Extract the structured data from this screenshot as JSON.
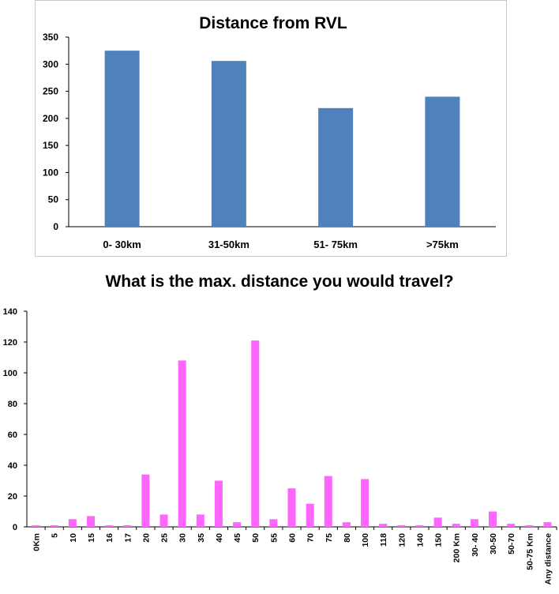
{
  "chart_data": [
    {
      "type": "bar",
      "title": "Distance from RVL",
      "categories": [
        "0- 30km",
        "31-50km",
        "51- 75km",
        ">75km"
      ],
      "values": [
        325,
        306,
        219,
        240
      ],
      "ylim": [
        0,
        350
      ],
      "yticks": [
        0,
        50,
        100,
        150,
        200,
        250,
        300,
        350
      ],
      "grid": false,
      "color": "#4f81bd"
    },
    {
      "type": "bar",
      "title": "What is the max. distance you would travel?",
      "categories": [
        "0Km",
        "5",
        "10",
        "15",
        "16",
        "17",
        "20",
        "25",
        "30",
        "35",
        "40",
        "45",
        "50",
        "55",
        "60",
        "70",
        "75",
        "80",
        "100",
        "118",
        "120",
        "140",
        "150",
        "200 Km",
        "30- 40",
        "30-50",
        "50-70",
        "50-75 Km",
        "Any distance"
      ],
      "values": [
        1,
        1,
        5,
        7,
        1,
        1,
        34,
        8,
        108,
        8,
        30,
        3,
        121,
        5,
        25,
        15,
        33,
        3,
        31,
        2,
        1,
        1,
        6,
        2,
        5,
        10,
        2,
        1,
        3
      ],
      "ylim": [
        0,
        140
      ],
      "yticks": [
        0,
        20,
        40,
        60,
        80,
        100,
        120,
        140
      ],
      "grid": false,
      "color": "#ff66ff"
    }
  ]
}
